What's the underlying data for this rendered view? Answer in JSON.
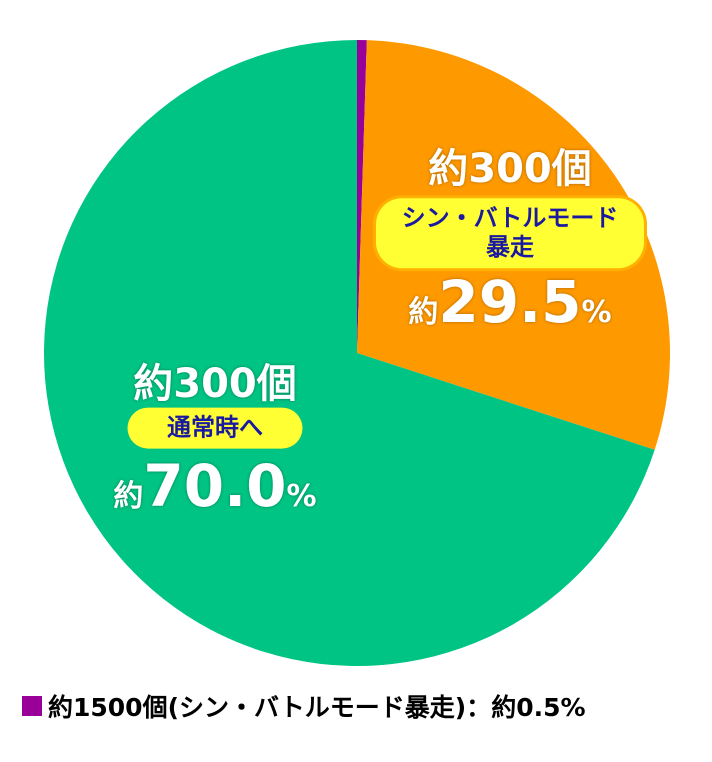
{
  "chart_data": {
    "type": "pie",
    "categories": [
      "約1500個(シン・バトルモード暴走)：",
      "シン・バトルモード暴走",
      "通常時へ"
    ],
    "payouts": [
      null,
      "約300個",
      "約300個"
    ],
    "values": [
      0.5,
      29.5,
      70.0
    ],
    "value_labels": [
      "約0.5%",
      "約29.5%",
      "約70.0%"
    ],
    "colors": [
      "#990099",
      "#ff9900",
      "#00c483"
    ],
    "start_angle": 90,
    "direction": "clockwise"
  }
}
